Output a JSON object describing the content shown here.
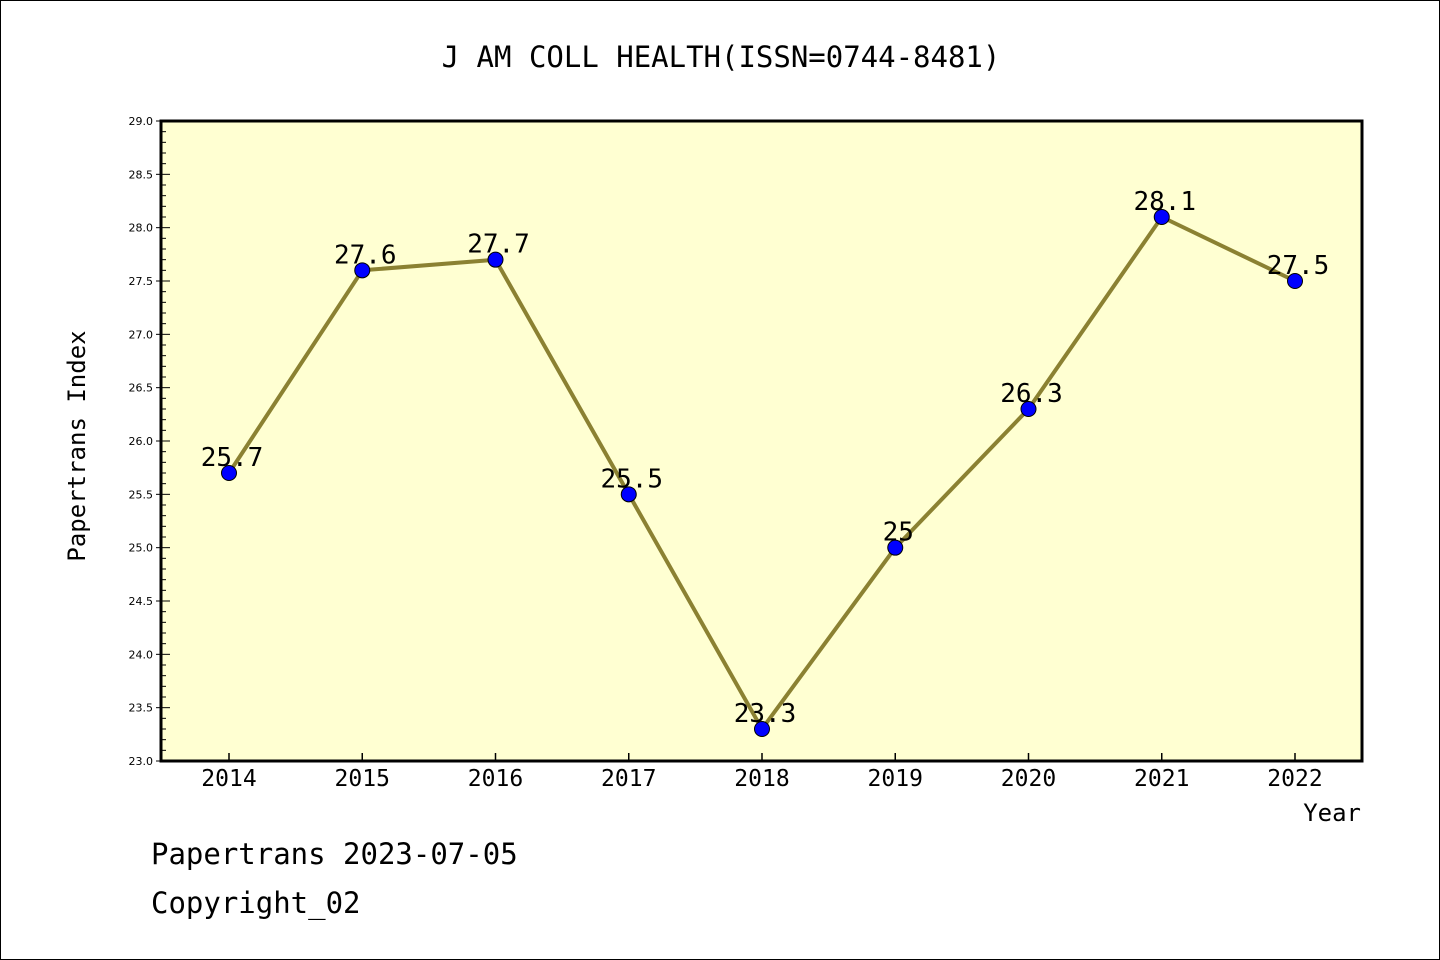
{
  "footer": {
    "line1": "Papertrans 2023-07-05",
    "line2": "Copyright_02"
  },
  "colors": {
    "plot_background": "#ffffd2",
    "line": "#8b8132",
    "marker": "#0000ff",
    "axis": "#000000"
  },
  "chart_data": {
    "type": "line",
    "title": "J AM COLL HEALTH(ISSN=0744-8481)",
    "xlabel": "Year",
    "ylabel": "Papertrans Index",
    "categories": [
      "2014",
      "2015",
      "2016",
      "2017",
      "2018",
      "2019",
      "2020",
      "2021",
      "2022"
    ],
    "series": [
      {
        "values": [
          25.7,
          27.6,
          27.7,
          25.5,
          23.3,
          25.0,
          26.3,
          28.1,
          27.5
        ]
      }
    ],
    "data_labels": [
      "25.7",
      "27.6",
      "27.7",
      "25.5",
      "23.3",
      "25",
      "26.3",
      "28.1",
      "27.5"
    ],
    "ylim": [
      23.0,
      29.0
    ],
    "yticks": [
      "23.0",
      "23.5",
      "24.0",
      "24.5",
      "25.0",
      "25.5",
      "26.0",
      "26.5",
      "27.0",
      "27.5",
      "28.0",
      "28.5",
      "29.0"
    ],
    "grid": false,
    "legend": "none"
  }
}
